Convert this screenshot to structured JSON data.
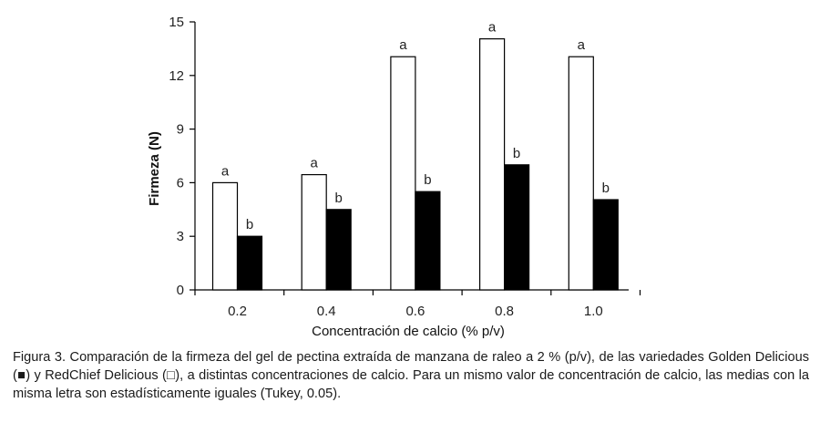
{
  "chart_data": {
    "type": "bar",
    "categories": [
      "0.2",
      "0.4",
      "0.6",
      "0.8",
      "1.0"
    ],
    "series": [
      {
        "key": "redchief",
        "fill": "#ffffff",
        "values": [
          6.0,
          6.45,
          13.05,
          14.05,
          13.05
        ],
        "letters": [
          "a",
          "a",
          "a",
          "a",
          "a"
        ]
      },
      {
        "key": "golden",
        "fill": "#000000",
        "values": [
          3.0,
          4.5,
          5.5,
          7.0,
          5.05
        ],
        "letters": [
          "b",
          "b",
          "b",
          "b",
          "b"
        ]
      }
    ],
    "xlabel": "Concentración de calcio (% p/v)",
    "ylabel": "Firmeza (N)",
    "ylim": [
      0,
      15
    ],
    "yticks": [
      "0",
      "3",
      "6",
      "9",
      "12",
      "15"
    ],
    "grid": false,
    "legend": "none"
  },
  "caption": {
    "label": "Figura 3.",
    "text": "Comparación de la firmeza del gel de pectina extraída de manzana de raleo a 2 % (p/v), de las variedades Golden Delicious (■) y RedChief Delicious (□), a distintas concentraciones de calcio. Para un mismo valor de concentración de calcio, las medias con la misma letra son estadísticamente iguales (Tukey, 0.05)."
  }
}
